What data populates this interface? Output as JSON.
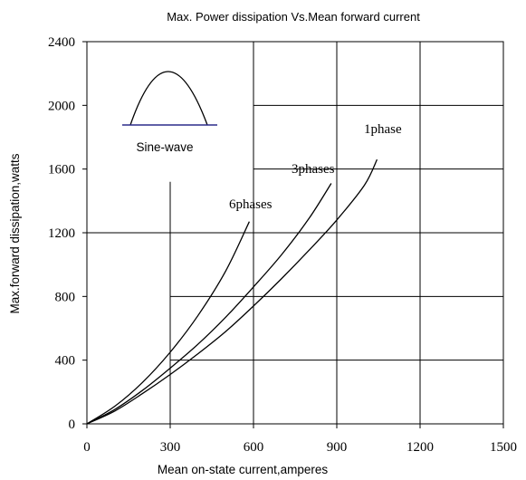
{
  "chart_data": {
    "type": "line",
    "title": "Max. Power dissipation  Vs.Mean  forward current",
    "xlabel": "Mean on-state  current,amperes",
    "ylabel": "Max.forward dissipation,watts",
    "xlim": [
      0,
      1500
    ],
    "ylim": [
      0,
      2400
    ],
    "xticks": [
      0,
      300,
      600,
      900,
      1200,
      1500
    ],
    "yticks": [
      0,
      400,
      800,
      1200,
      1600,
      2000,
      2400
    ],
    "grid": "partial",
    "series": [
      {
        "name": "6phases",
        "x": [
          0,
          100,
          200,
          300,
          400,
          500,
          585
        ],
        "y": [
          0,
          110,
          260,
          450,
          680,
          960,
          1270
        ]
      },
      {
        "name": "3phases",
        "x": [
          0,
          100,
          200,
          300,
          400,
          500,
          600,
          700,
          800,
          880
        ],
        "y": [
          0,
          90,
          210,
          350,
          500,
          670,
          860,
          1060,
          1290,
          1510
        ]
      },
      {
        "name": "1phase",
        "x": [
          0,
          100,
          200,
          300,
          400,
          500,
          600,
          700,
          800,
          900,
          1000,
          1045
        ],
        "y": [
          0,
          80,
          190,
          310,
          440,
          580,
          740,
          910,
          1090,
          1280,
          1500,
          1660
        ]
      }
    ],
    "inset": {
      "label": "Sine-wave"
    }
  }
}
